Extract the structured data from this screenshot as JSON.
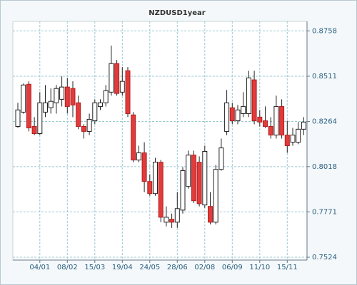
{
  "chart_data": {
    "type": "candlestick",
    "title": "NZDUSD1year",
    "categories": [
      null,
      null,
      null,
      null,
      "04/01",
      null,
      null,
      null,
      null,
      "08/02",
      null,
      null,
      null,
      null,
      "15/03",
      null,
      null,
      null,
      null,
      "19/04",
      null,
      null,
      null,
      null,
      "24/05",
      null,
      null,
      null,
      null,
      "28/06",
      null,
      null,
      null,
      null,
      "02/08",
      null,
      null,
      null,
      null,
      "06/09",
      null,
      null,
      null,
      null,
      "11/10",
      null,
      null,
      null,
      null,
      "15/11",
      null,
      null,
      null
    ],
    "open": [
      0.8237,
      0.8315,
      0.8467,
      0.8237,
      0.8198,
      0.8315,
      0.8339,
      0.8366,
      0.8385,
      0.8452,
      0.8444,
      0.8366,
      0.8237,
      0.821,
      0.8268,
      0.8346,
      0.8366,
      0.8424,
      0.858,
      0.8424,
      0.8541,
      0.83,
      0.8054,
      0.8093,
      0.7937,
      0.7871,
      0.8042,
      0.7715,
      0.7731,
      0.7715,
      0.7781,
      0.791,
      0.8081,
      0.8042,
      0.7809,
      0.7801,
      0.7715,
      0.8003,
      0.821,
      0.8339,
      0.8268,
      0.8307,
      0.8307,
      0.8491,
      0.8288,
      0.8268,
      0.8237,
      0.819,
      0.8346,
      0.819,
      0.8151,
      0.8151,
      0.8222
    ],
    "high": [
      0.8366,
      0.8471,
      0.8483,
      0.8288,
      0.8424,
      0.8463,
      0.8444,
      0.8463,
      0.851,
      0.8502,
      0.8483,
      0.8405,
      0.8249,
      0.8307,
      0.8385,
      0.8385,
      0.8463,
      0.8678,
      0.86,
      0.8561,
      0.8561,
      0.8315,
      0.8132,
      0.8151,
      0.7976,
      0.8066,
      0.8054,
      0.7801,
      0.7762,
      0.7879,
      0.8015,
      0.8105,
      0.8105,
      0.8074,
      0.8132,
      0.7879,
      0.8027,
      0.8171,
      0.8436,
      0.8366,
      0.8354,
      0.8424,
      0.8541,
      0.8541,
      0.8327,
      0.8346,
      0.8288,
      0.8405,
      0.8385,
      0.8268,
      0.8229,
      0.8261,
      0.8288
    ],
    "low": [
      0.8229,
      0.8307,
      0.821,
      0.819,
      0.819,
      0.8288,
      0.8307,
      0.8307,
      0.8346,
      0.8307,
      0.8288,
      0.8222,
      0.8171,
      0.819,
      0.8249,
      0.8327,
      0.8346,
      0.8405,
      0.8405,
      0.8405,
      0.8288,
      0.8042,
      0.8042,
      0.7879,
      0.7859,
      0.7859,
      0.7715,
      0.7692,
      0.7684,
      0.7684,
      0.7762,
      0.7898,
      0.782,
      0.7801,
      0.7793,
      0.7703,
      0.7703,
      0.7996,
      0.819,
      0.8249,
      0.8249,
      0.8288,
      0.8288,
      0.8249,
      0.8237,
      0.8229,
      0.8171,
      0.8171,
      0.8171,
      0.8093,
      0.8132,
      0.814,
      0.819
    ],
    "close": [
      0.8327,
      0.8463,
      0.8229,
      0.8198,
      0.8366,
      0.8366,
      0.8374,
      0.8444,
      0.8452,
      0.8346,
      0.8354,
      0.8237,
      0.821,
      0.8276,
      0.8366,
      0.8366,
      0.8432,
      0.858,
      0.8417,
      0.8483,
      0.8307,
      0.8054,
      0.8093,
      0.7937,
      0.7871,
      0.8042,
      0.7742,
      0.7742,
      0.7715,
      0.7789,
      0.7996,
      0.8081,
      0.7832,
      0.7816,
      0.8101,
      0.7715,
      0.8003,
      0.812,
      0.8366,
      0.8268,
      0.8327,
      0.8346,
      0.8502,
      0.8268,
      0.8261,
      0.8237,
      0.819,
      0.8346,
      0.819,
      0.8132,
      0.819,
      0.8222,
      0.8261
    ],
    "up_color": "#ffffff",
    "down_color": "#e23b3b",
    "ylim": [
      0.7524,
      0.881
    ],
    "yticks": [
      0.7524,
      0.7771,
      0.8018,
      0.8264,
      0.8511,
      0.8758
    ],
    "grid": true
  }
}
